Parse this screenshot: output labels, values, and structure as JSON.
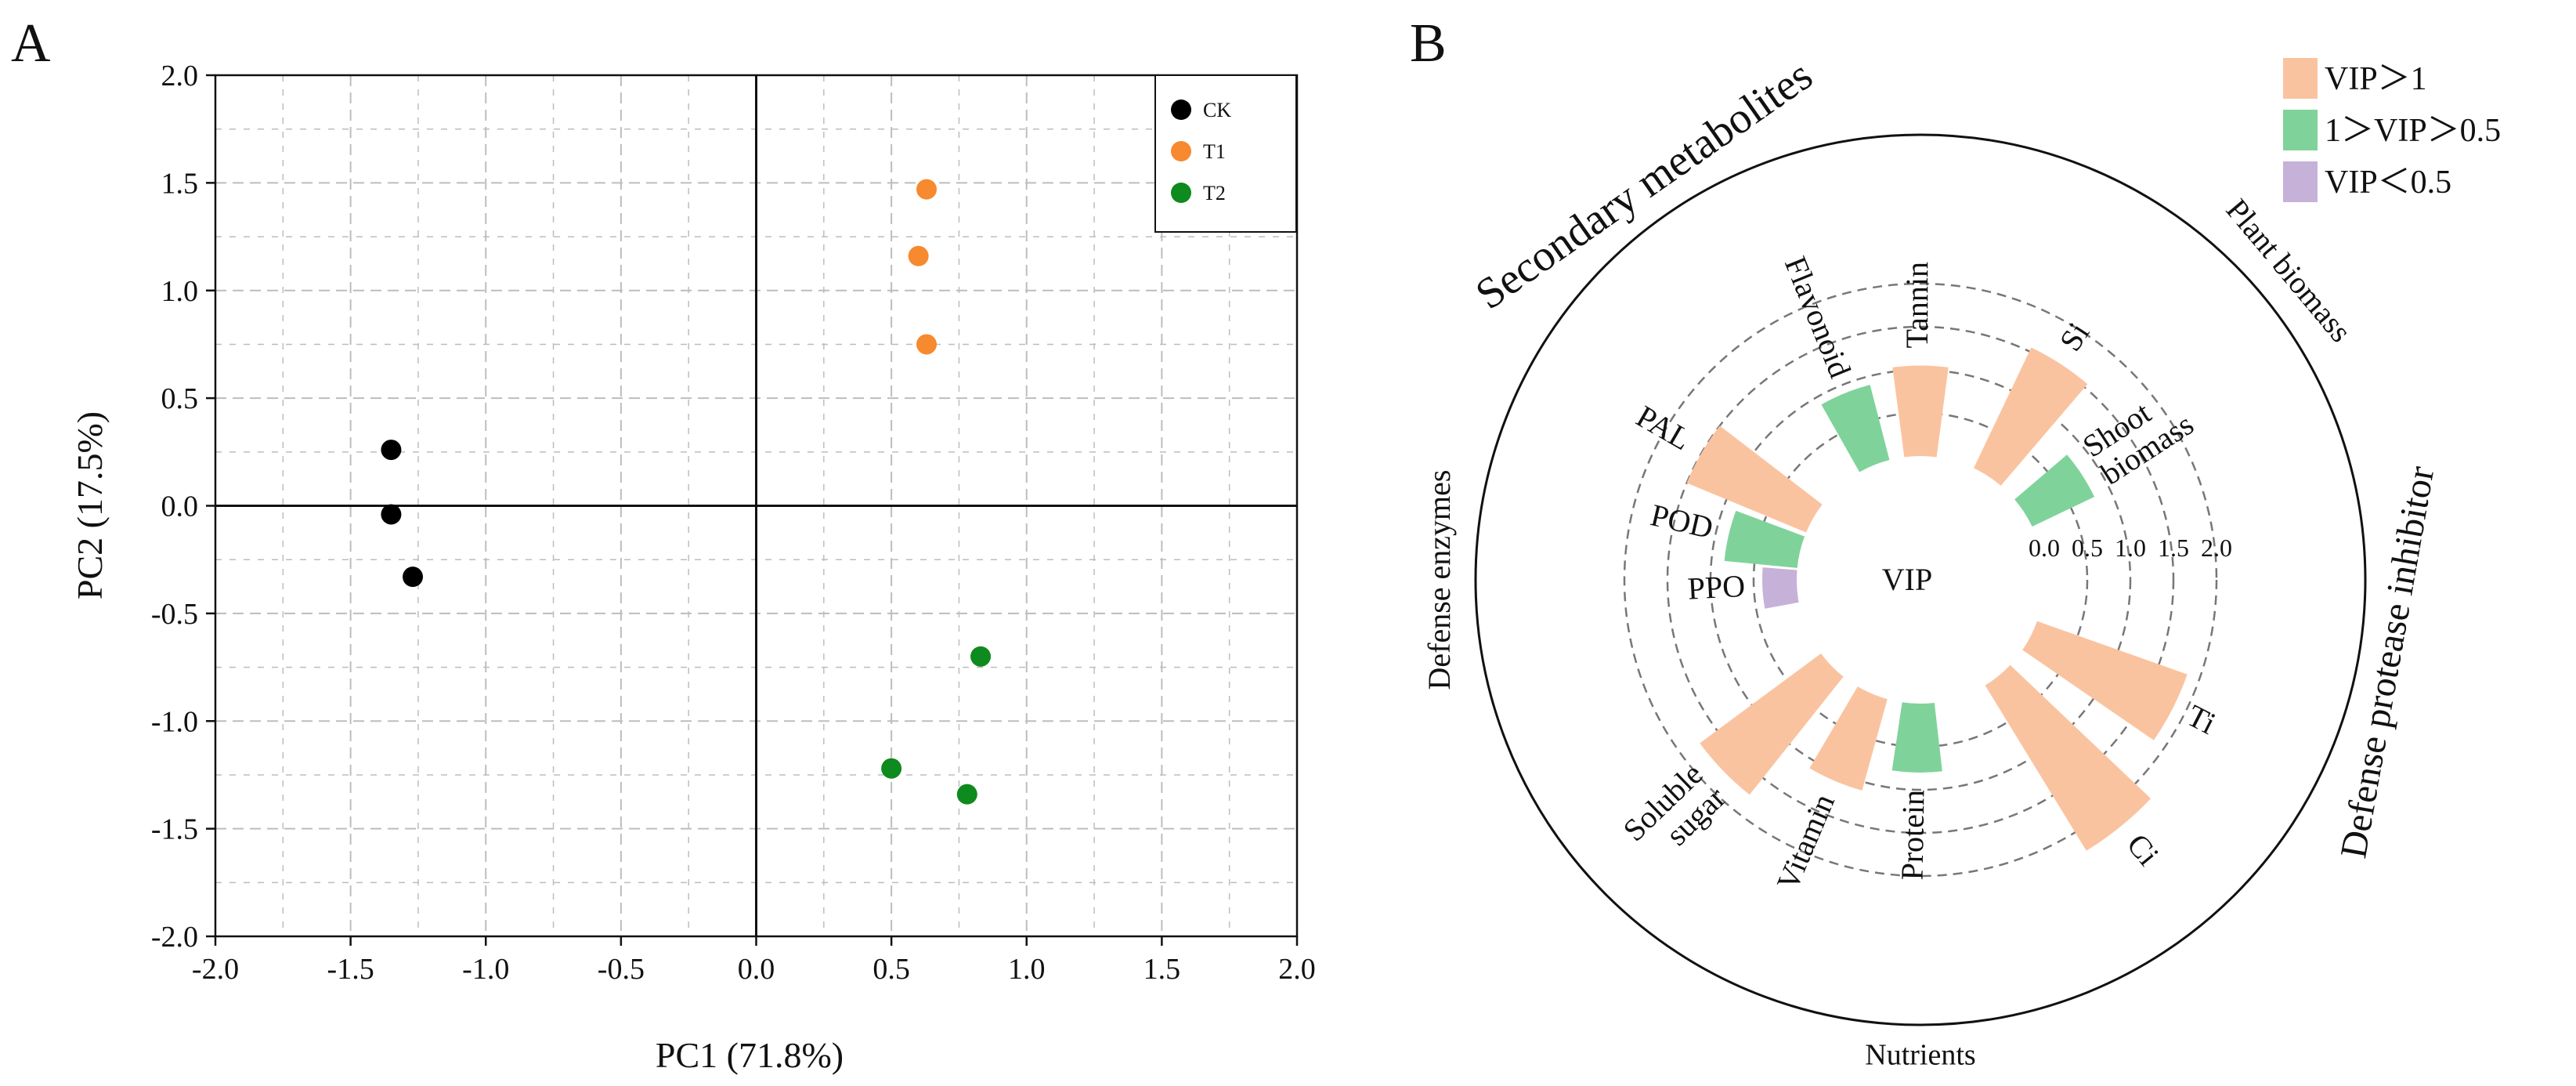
{
  "panels": {
    "left_letter": "A",
    "right_letter": "B"
  },
  "colors": {
    "ck": "#000000",
    "t1": "#f7892e",
    "t2": "#0e8a1e",
    "vip_high": "#fac3a0",
    "vip_mid": "#7fd39a",
    "vip_low": "#c6b1d8",
    "axis": "#111111",
    "grid": "#bdbdbd",
    "ring": "#777777"
  },
  "chart_data": [
    {
      "type": "scatter",
      "title": "",
      "xlabel": "PC1 (71.8%)",
      "ylabel": "PC2 (17.5%)",
      "xlim": [
        -2.0,
        2.0
      ],
      "ylim": [
        -2.0,
        2.0
      ],
      "xticks": [
        -2.0,
        -1.5,
        -1.0,
        -0.5,
        0.0,
        0.5,
        1.0,
        1.5,
        2.0
      ],
      "yticks": [
        -2.0,
        -1.5,
        -1.0,
        -0.5,
        0.0,
        0.5,
        1.0,
        1.5,
        2.0
      ],
      "xtick_labels": [
        "-2.0",
        "-1.5",
        "-1.0",
        "-0.5",
        "0.0",
        "0.5",
        "1.0",
        "1.5",
        "2.0"
      ],
      "ytick_labels": [
        "-2.0",
        "-1.5",
        "-1.0",
        "-0.5",
        "0.0",
        "0.5",
        "1.0",
        "1.5",
        "2.0"
      ],
      "grid": true,
      "legend_position": "top-right",
      "series": [
        {
          "name": "CK",
          "color": "#000000",
          "points": [
            [
              -1.35,
              0.26
            ],
            [
              -1.35,
              -0.04
            ],
            [
              -1.27,
              -0.33
            ]
          ]
        },
        {
          "name": "T1",
          "color": "#f7892e",
          "points": [
            [
              0.63,
              1.47
            ],
            [
              0.6,
              1.16
            ],
            [
              0.63,
              0.75
            ]
          ]
        },
        {
          "name": "T2",
          "color": "#0e8a1e",
          "points": [
            [
              0.83,
              -0.7
            ],
            [
              0.5,
              -1.22
            ],
            [
              0.78,
              -1.34
            ]
          ]
        }
      ]
    },
    {
      "type": "bar",
      "subtype": "polar",
      "center_label": "VIP",
      "radial_ticks": [
        0.0,
        0.5,
        1.0,
        1.5,
        2.0
      ],
      "radial_tick_labels": [
        "0.0",
        "0.5",
        "1.0",
        "1.5",
        "2.0"
      ],
      "legend_position": "top-right",
      "legend": [
        {
          "label": "VIP＞1",
          "color": "#fac3a0"
        },
        {
          "label": "1＞VIP＞0.5",
          "color": "#7fd39a"
        },
        {
          "label": "VIP＜0.5",
          "color": "#c6b1d8"
        }
      ],
      "groups": [
        "Secondary metabolites",
        "Plant biomass",
        "Defense protease inhibitor",
        "Nutrients",
        "Defense enzymes"
      ],
      "bars": [
        {
          "label": "Tannin",
          "value": 1.05,
          "class": "high",
          "angle": 0
        },
        {
          "label": "Si",
          "value": 1.55,
          "class": "high",
          "angle": 33
        },
        {
          "label": "Shoot biomass",
          "value": 0.8,
          "class": "mid",
          "angle": 57
        },
        {
          "label": "Ti",
          "value": 1.85,
          "class": "high",
          "angle": 117
        },
        {
          "label": "Ci",
          "value": 2.25,
          "class": "high",
          "angle": 141
        },
        {
          "label": "Protein",
          "value": 0.8,
          "class": "mid",
          "angle": 181
        },
        {
          "label": "Vitamin",
          "value": 1.1,
          "class": "high",
          "angle": 203
        },
        {
          "label": "Soluble sugar",
          "value": 1.75,
          "class": "high",
          "angle": 226
        },
        {
          "label": "PPO",
          "value": 0.4,
          "class": "low",
          "angle": 267
        },
        {
          "label": "POD",
          "value": 0.85,
          "class": "mid",
          "angle": 283
        },
        {
          "label": "PAL",
          "value": 1.5,
          "class": "high",
          "angle": 300
        },
        {
          "label": "Flavonoid",
          "value": 0.9,
          "class": "mid",
          "angle": 338
        }
      ]
    }
  ]
}
